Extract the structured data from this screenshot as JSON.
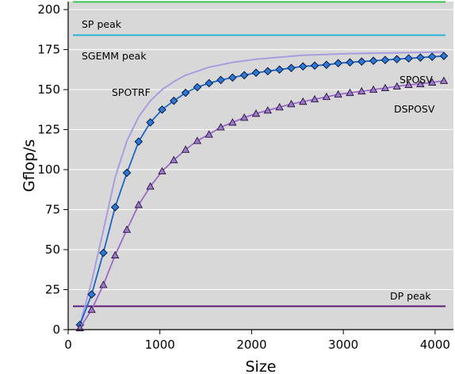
{
  "chart_data": {
    "type": "line",
    "xlabel": "Size",
    "ylabel": "Gflop/s",
    "xlim": [
      0,
      4200
    ],
    "ylim": [
      0,
      205
    ],
    "xticks": [
      0,
      1000,
      2000,
      3000,
      4000
    ],
    "yticks": [
      0,
      25,
      50,
      75,
      100,
      125,
      150,
      175,
      200
    ],
    "grid": "horizontal",
    "background": "#d8d8d8",
    "hlines": [
      {
        "name": "SP peak",
        "label": "SP peak",
        "y": 204.8,
        "color": "#3cc45a"
      },
      {
        "name": "SGEMM peak",
        "label": "SGEMM peak",
        "y": 184,
        "color": "#2ab3d8"
      },
      {
        "name": "DP peak",
        "label": "DP peak",
        "y": 14.6,
        "color": "#5e1a78"
      }
    ],
    "series": [
      {
        "name": "SPOTRF",
        "label": "SPOTRF",
        "color": "#a79de0",
        "marker": "none",
        "x": [
          128,
          256,
          384,
          512,
          640,
          768,
          896,
          1024,
          1152,
          1280,
          1536,
          1792,
          2048,
          2560,
          3072,
          3584,
          4096
        ],
        "y": [
          3,
          30,
          62,
          95,
          118,
          133,
          143,
          150,
          155,
          159,
          164,
          167,
          169,
          171.5,
          172.5,
          173,
          173.5
        ]
      },
      {
        "name": "SPOSV",
        "label": "SPOSV",
        "color": "#1a66c8",
        "marker": "diamond",
        "x": [
          128,
          256,
          384,
          512,
          640,
          768,
          896,
          1024,
          1152,
          1280,
          1408,
          1536,
          1664,
          1792,
          1920,
          2048,
          2176,
          2304,
          2432,
          2560,
          2688,
          2816,
          2944,
          3072,
          3200,
          3328,
          3456,
          3584,
          3712,
          3840,
          3968,
          4096
        ],
        "y": [
          3,
          22,
          48,
          76.5,
          98,
          117.5,
          129.5,
          137.5,
          143,
          148,
          151.5,
          154,
          156,
          157.5,
          159,
          160.5,
          161.5,
          162.5,
          163.5,
          164.5,
          165,
          165.5,
          166.5,
          167,
          167.5,
          168,
          168.5,
          169,
          169.5,
          170,
          170.5,
          171
        ]
      },
      {
        "name": "DSPOSV",
        "label": "DSPOSV",
        "color": "#9b69c8",
        "marker": "triangle",
        "x": [
          128,
          256,
          384,
          512,
          640,
          768,
          896,
          1024,
          1152,
          1280,
          1408,
          1536,
          1664,
          1792,
          1920,
          2048,
          2176,
          2304,
          2432,
          2560,
          2688,
          2816,
          2944,
          3072,
          3200,
          3328,
          3456,
          3584,
          3712,
          3840,
          3968,
          4096
        ],
        "y": [
          1,
          12.5,
          28,
          46.5,
          62.5,
          78,
          89.5,
          99,
          106,
          112.5,
          118,
          122,
          126.5,
          129.5,
          132.5,
          135,
          137,
          139,
          141,
          142.5,
          144,
          145.5,
          147,
          148,
          149,
          150,
          151,
          152,
          153,
          153.5,
          154.5,
          155.5
        ]
      }
    ]
  }
}
